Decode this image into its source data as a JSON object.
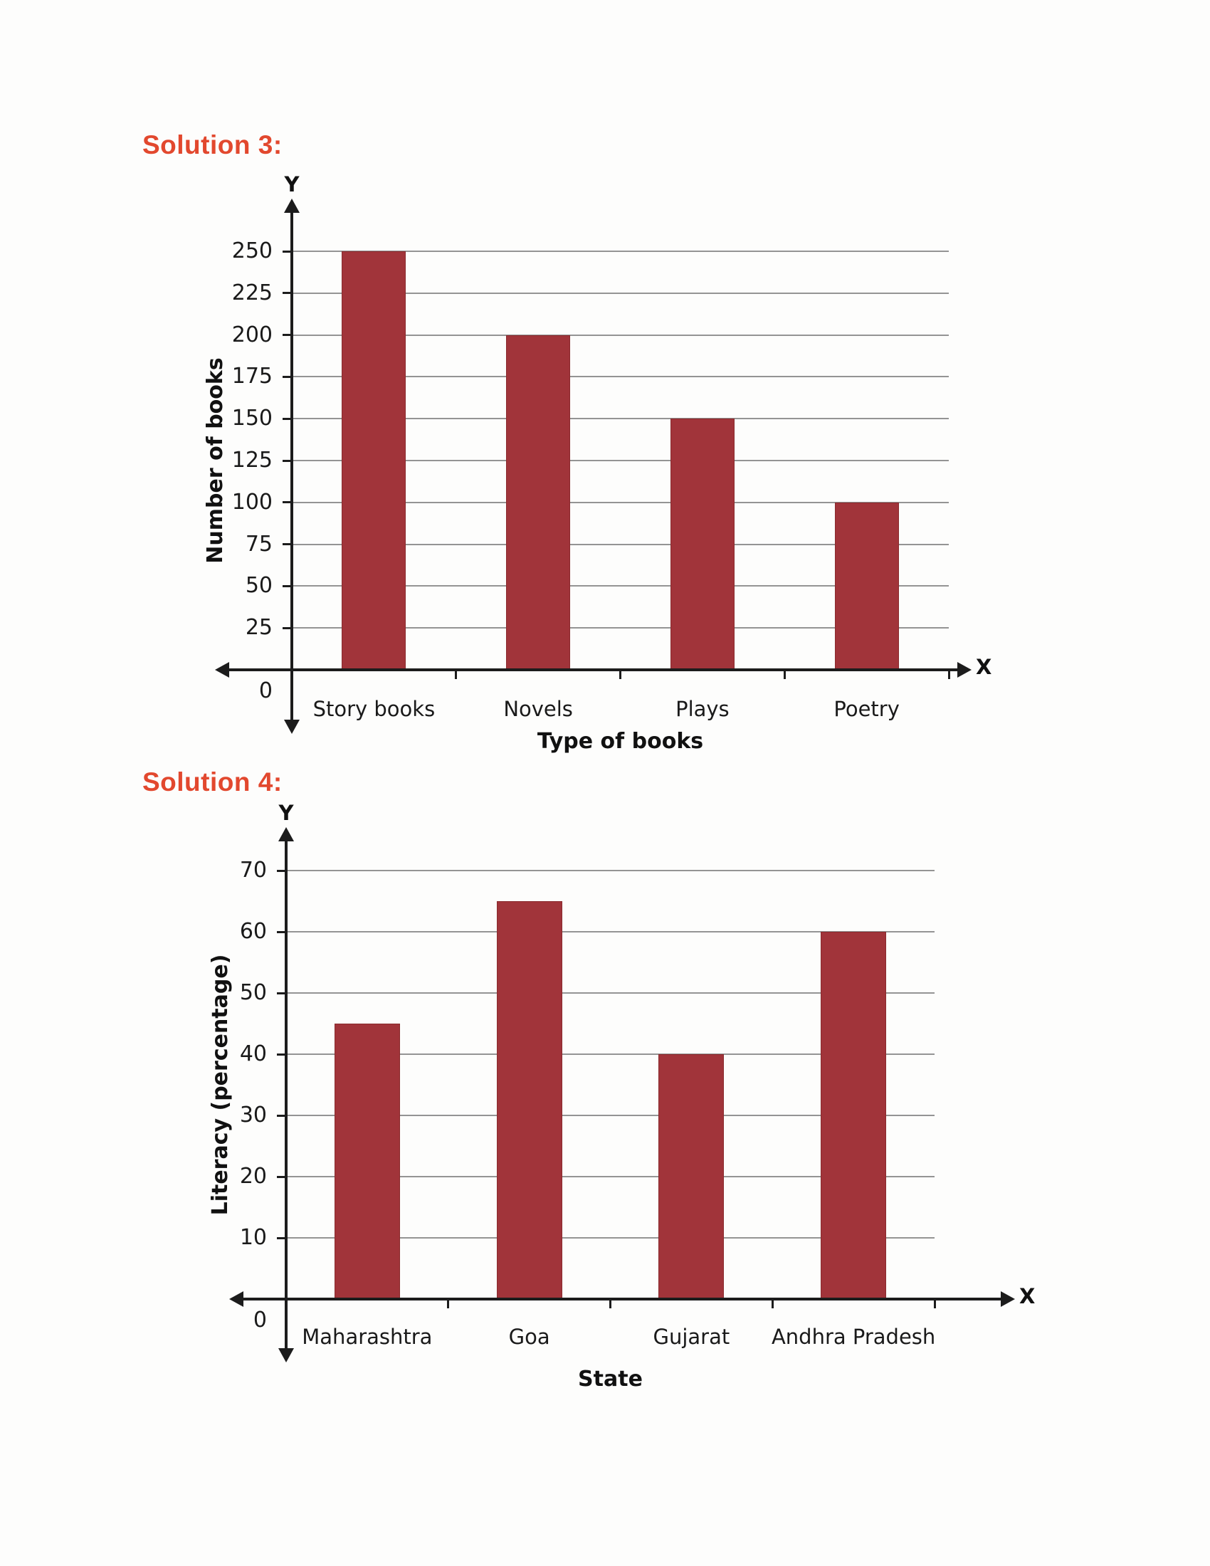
{
  "headings": [
    {
      "label": "Solution 3:"
    },
    {
      "label": "Solution 4:"
    }
  ],
  "colors": {
    "heading": "#e2482e",
    "bar": "#a1343a",
    "bar_edge": "#8a2b2e",
    "gridline": "#949494",
    "axis": "#1c1c1c"
  },
  "chart_data": [
    {
      "type": "bar",
      "title": "",
      "categories": [
        "Story books",
        "Novels",
        "Plays",
        "Poetry"
      ],
      "values": [
        250,
        200,
        150,
        100
      ],
      "xlabel": "Type of books",
      "ylabel": "Number of books",
      "yticks": [
        0,
        25,
        50,
        75,
        100,
        125,
        150,
        175,
        200,
        225,
        250
      ],
      "ylim": [
        0,
        265
      ],
      "grid": true,
      "legend": "none",
      "axis_end_labels": {
        "x": "X",
        "y": "Y"
      },
      "origin_label": "0"
    },
    {
      "type": "bar",
      "title": "",
      "categories": [
        "Maharashtra",
        "Goa",
        "Gujarat",
        "Andhra Pradesh"
      ],
      "values": [
        45,
        65,
        40,
        60
      ],
      "xlabel": "State",
      "ylabel": "Literacy (percentage)",
      "yticks": [
        0,
        10,
        20,
        30,
        40,
        50,
        60,
        70
      ],
      "ylim": [
        0,
        75
      ],
      "grid": true,
      "legend": "none",
      "axis_end_labels": {
        "x": "X",
        "y": "Y"
      },
      "origin_label": "0"
    }
  ]
}
